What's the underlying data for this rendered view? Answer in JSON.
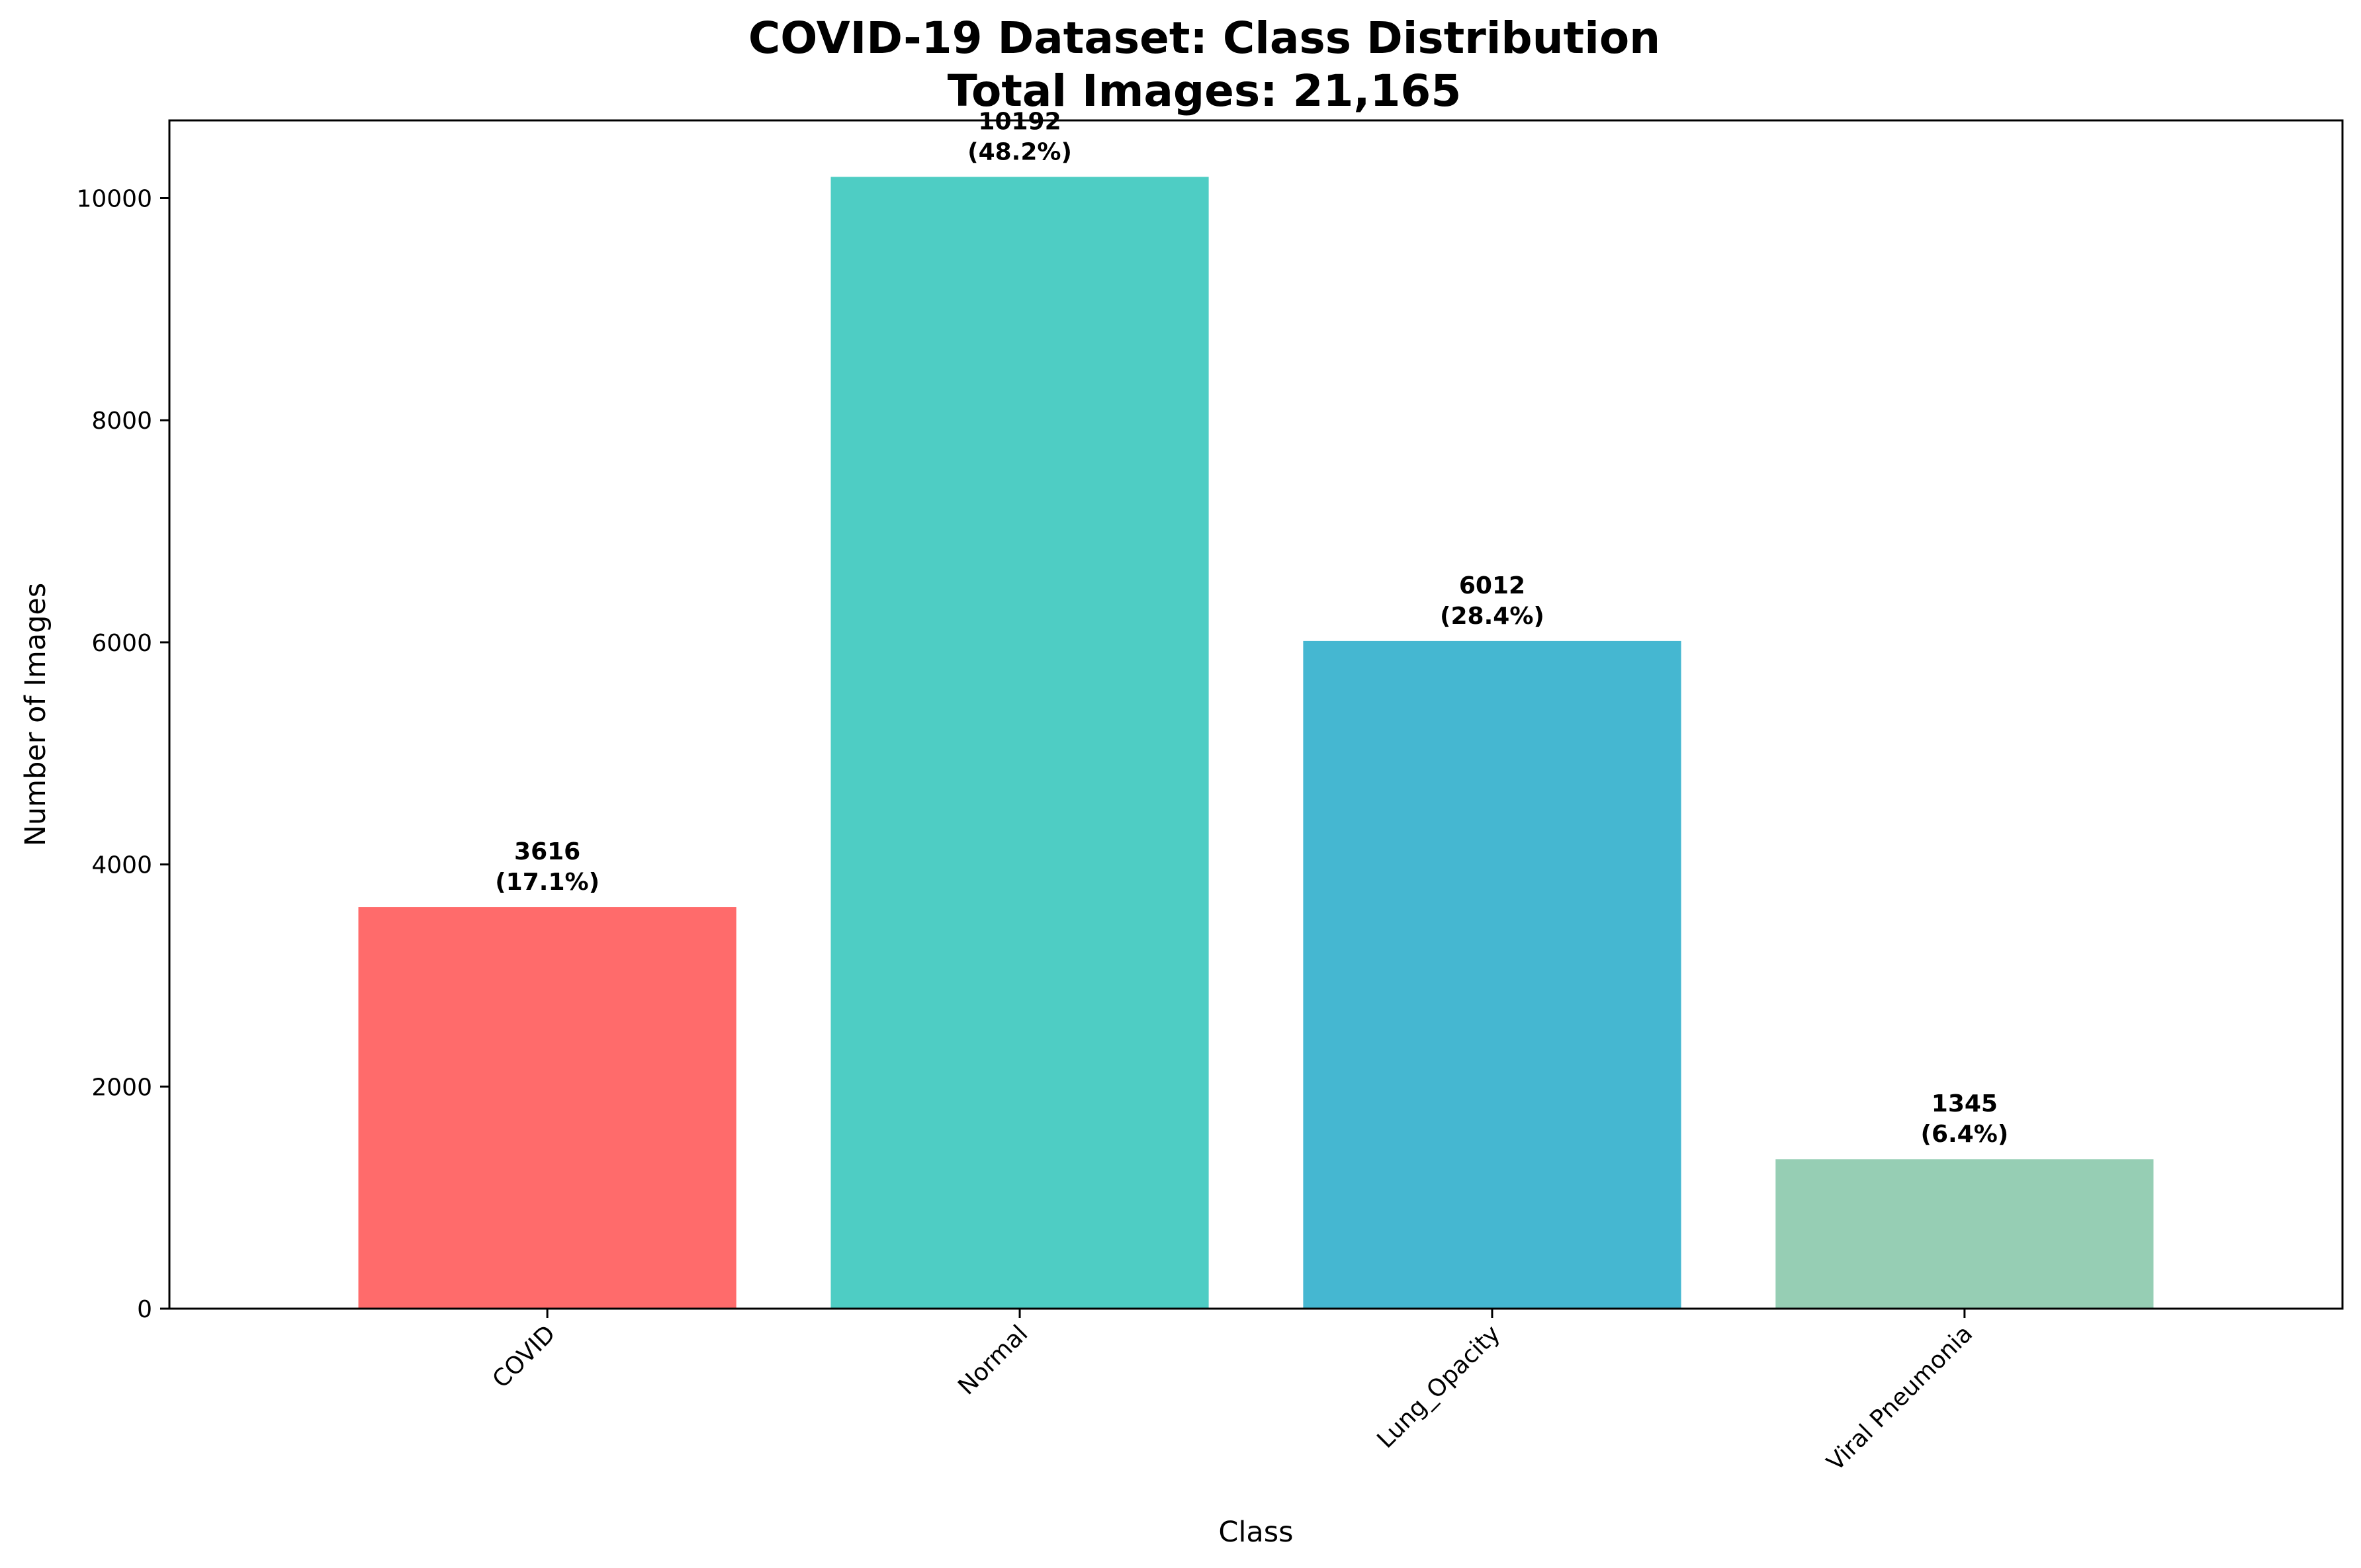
{
  "chart_data": {
    "type": "bar",
    "title": "COVID-19 Dataset: Class Distribution",
    "subtitle": "Total Images: 21,165",
    "xlabel": "Class",
    "ylabel": "Number of Images",
    "categories": [
      "COVID",
      "Normal",
      "Lung_Opacity",
      "Viral Pneumonia"
    ],
    "values": [
      3616,
      10192,
      6012,
      1345
    ],
    "data_labels": [
      "3616",
      "10192",
      "6012",
      "1345"
    ],
    "percent_labels": [
      "(17.1%)",
      "(48.2%)",
      "(28.4%)",
      "(6.4%)"
    ],
    "colors": [
      "#FF6B6B",
      "#4ECDC4",
      "#45B7D1",
      "#96CEB4"
    ],
    "ylim": [
      0,
      10700
    ],
    "yticks": [
      0,
      2000,
      4000,
      6000,
      8000,
      10000
    ],
    "ytick_labels": [
      "0",
      "2000",
      "4000",
      "6000",
      "8000",
      "10000"
    ],
    "xtick_rotation_deg": 45,
    "grid": false,
    "legend": "none"
  }
}
